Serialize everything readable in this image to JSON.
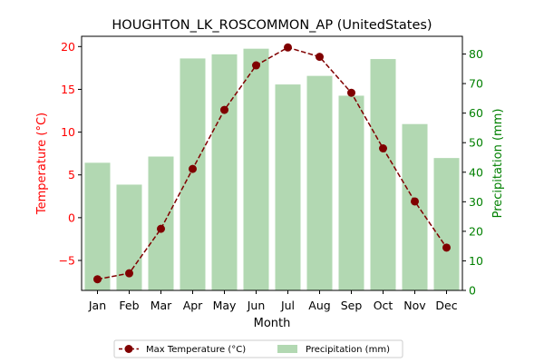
{
  "chart_data": {
    "type": "bar+line",
    "title": "HOUGHTON_LK_ROSCOMMON_AP (UnitedStates)",
    "xlabel": "Month",
    "categories": [
      "Jan",
      "Feb",
      "Mar",
      "Apr",
      "May",
      "Jun",
      "Jul",
      "Aug",
      "Sep",
      "Oct",
      "Nov",
      "Dec"
    ],
    "left_axis": {
      "label": "Temperature (°C)",
      "ylim": [
        -8.5,
        21.2
      ],
      "ticks": [
        -5,
        0,
        5,
        10,
        15,
        20
      ],
      "color": "#ff0000"
    },
    "right_axis": {
      "label": "Precipitation (mm)",
      "ylim": [
        0,
        86
      ],
      "ticks": [
        0,
        10,
        20,
        30,
        40,
        50,
        60,
        70,
        80
      ],
      "color": "#008000"
    },
    "series": [
      {
        "name": "Max Temperature (°C)",
        "kind": "line",
        "axis": "left",
        "color": "#800000",
        "values": [
          -7.2,
          -6.5,
          -1.3,
          5.7,
          12.6,
          17.8,
          19.9,
          18.8,
          14.6,
          8.1,
          1.9,
          -3.5
        ]
      },
      {
        "name": "Precipitation (mm)",
        "kind": "bar",
        "axis": "right",
        "color": "#b2d8b2",
        "values": [
          43.2,
          35.8,
          45.3,
          78.5,
          79.9,
          81.8,
          69.7,
          72.6,
          65.9,
          78.3,
          56.3,
          44.8
        ]
      }
    ],
    "grid": false,
    "legend_position": "bottom-center"
  }
}
